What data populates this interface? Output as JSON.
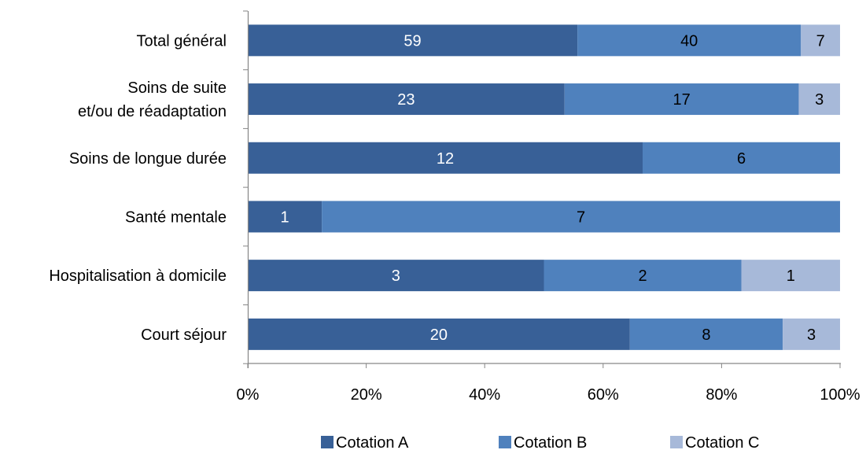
{
  "chart_data": {
    "type": "bar",
    "orientation": "horizontal",
    "stacked": "percent",
    "categories": [
      "Total général",
      [
        "Soins de suite",
        "et/ou de réadaptation"
      ],
      "Soins de longue durée",
      "Santé mentale",
      "Hospitalisation  à domicile",
      "Court séjour"
    ],
    "series": [
      {
        "name": "Cotation A",
        "color": "#386097",
        "label_color": "#ffffff",
        "values": [
          59,
          23,
          12,
          1,
          3,
          20
        ]
      },
      {
        "name": "Cotation B",
        "color": "#4f81bd",
        "label_color": "#000000",
        "values": [
          40,
          17,
          6,
          7,
          2,
          8
        ]
      },
      {
        "name": "Cotation C",
        "color": "#a7b9d9",
        "label_color": "#000000",
        "values": [
          7,
          3,
          0,
          0,
          1,
          3
        ]
      }
    ],
    "xlim": [
      0,
      100
    ],
    "xticks": [
      "0%",
      "20%",
      "40%",
      "60%",
      "80%",
      "100%"
    ],
    "grid": false,
    "legend_position": "bottom"
  }
}
